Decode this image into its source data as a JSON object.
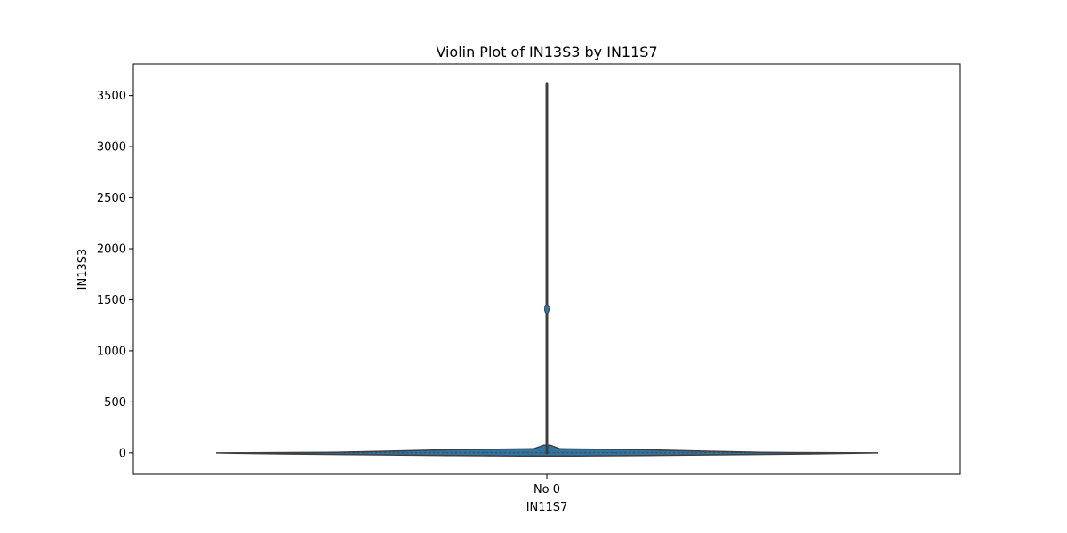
{
  "chart_data": {
    "type": "violin",
    "title": "Violin Plot of IN13S3 by IN11S7",
    "xlabel": "IN11S7",
    "ylabel": "IN13S3",
    "categories": [
      "No 0"
    ],
    "ylim": [
      -210,
      3810
    ],
    "yticks": [
      0,
      500,
      1000,
      1500,
      2000,
      2500,
      3000,
      3500
    ],
    "ytick_labels": [
      "0",
      "500",
      "1000",
      "1500",
      "2000",
      "2500",
      "3000",
      "3500"
    ],
    "violins": [
      {
        "category": "No 0",
        "min": 0,
        "max": 3620,
        "median": 1,
        "outlier_marker": 1410,
        "color": "#3274a1",
        "density_upper": [
          [
            0,
            1.0
          ],
          [
            5,
            0.65
          ],
          [
            15,
            0.5
          ],
          [
            30,
            0.3
          ],
          [
            40,
            0.04
          ],
          [
            75,
            0.01
          ]
        ],
        "density_lower": [
          [
            0,
            1.0
          ],
          [
            -10,
            0.8
          ],
          [
            -18,
            0.55
          ],
          [
            -25,
            0.3
          ],
          [
            -30,
            0.08
          ]
        ]
      }
    ],
    "grid": false,
    "legend": "none"
  }
}
